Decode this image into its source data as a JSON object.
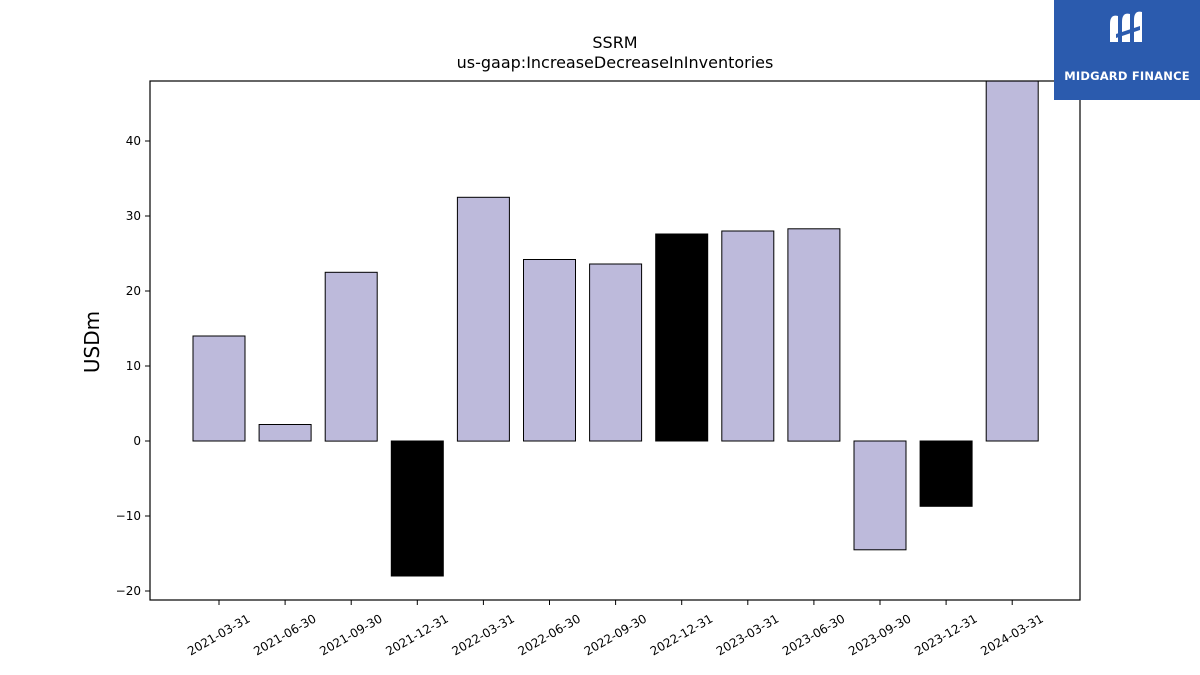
{
  "brand": {
    "name": "MIDGARD FINANCE",
    "box_color": "#2B5BAE"
  },
  "chart_data": {
    "type": "bar",
    "title": "SSRM",
    "subtitle": "us-gaap:IncreaseDecreaseInInventories",
    "xlabel": "",
    "ylabel": "USDm",
    "ylim": [
      -21.2,
      48
    ],
    "yticks": [
      -20,
      -10,
      0,
      10,
      20,
      30,
      40
    ],
    "ytick_labels": [
      "−20",
      "−10",
      "0",
      "10",
      "20",
      "30",
      "40"
    ],
    "categories": [
      "2021-03-31",
      "2021-06-30",
      "2021-09-30",
      "2021-12-31",
      "2022-03-31",
      "2022-06-30",
      "2022-09-30",
      "2022-12-31",
      "2023-03-31",
      "2023-06-30",
      "2023-09-30",
      "2023-12-31",
      "2024-03-31"
    ],
    "values": [
      14.0,
      2.2,
      22.5,
      -18.0,
      32.5,
      24.2,
      23.6,
      27.6,
      28.0,
      28.3,
      -14.5,
      -8.7,
      49.0
    ],
    "highlight": [
      false,
      false,
      false,
      true,
      false,
      false,
      false,
      true,
      false,
      false,
      false,
      true,
      false
    ],
    "colors": {
      "default": "#BDBADB",
      "highlight": "#000000",
      "edge": "#000000"
    },
    "grid": false,
    "legend": "none"
  }
}
